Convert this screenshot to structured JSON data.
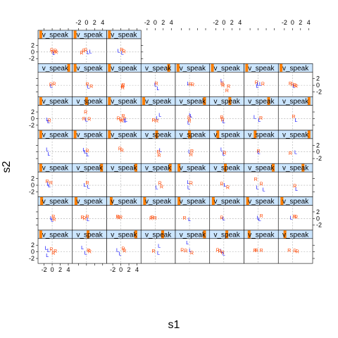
{
  "chart_data": {
    "type": "scatter",
    "layout": "trellis",
    "columns": 8,
    "panel_count": 51,
    "xlabel": "s1",
    "ylabel": "s2",
    "xlim": [
      -3.5,
      5
    ],
    "ylim": [
      -3.5,
      4
    ],
    "x_ticks": [
      "-2",
      "0",
      "2",
      "4"
    ],
    "y_ticks": [
      "2",
      "0",
      "-2"
    ],
    "x_tick_values": [
      -2,
      0,
      2,
      4
    ],
    "y_tick_values": [
      2,
      0,
      -2
    ],
    "strip_label": "v_speak",
    "strip_color": "#cce6ff",
    "strip_marker_color": "#ff7f00",
    "reference_lines": "dashed lines at s1 = 0 and s2 = 0",
    "series": [
      {
        "symbol": "L",
        "color": "#0000ff"
      },
      {
        "symbol": "R",
        "color": "#ff4500"
      }
    ],
    "panels": [
      {
        "m": 0.02,
        "pts": [
          [
            "L",
            -1.5,
            1.2
          ],
          [
            "L",
            -1.2,
            -1.0
          ],
          [
            "L",
            -0.9,
            0.4
          ],
          [
            "R",
            -0.2,
            0.8
          ],
          [
            "R",
            0.3,
            -0.4
          ],
          [
            "R",
            0.8,
            0.2
          ]
        ]
      },
      {
        "m": 0.45,
        "pts": [
          [
            "L",
            -1.0,
            1.3
          ],
          [
            "L",
            -0.2,
            -0.3
          ],
          [
            "R",
            0.5,
            0.5
          ],
          [
            "R",
            0.8,
            0.1
          ]
        ]
      },
      {
        "m": 0.9,
        "pts": [
          [
            "L",
            -0.8,
            0.6
          ],
          [
            "L",
            -0.2,
            -0.5
          ],
          [
            "R",
            0.6,
            1.0
          ],
          [
            "R",
            0.9,
            0.3
          ]
        ]
      },
      {
        "m": 0.65,
        "pts": [
          [
            "L",
            1.0,
            1.8
          ],
          [
            "L",
            0.8,
            -0.3
          ],
          [
            "R",
            -0.4,
            0.2
          ]
        ]
      },
      {
        "m": 0.9,
        "pts": [
          [
            "L",
            -0.5,
            2.8
          ],
          [
            "R",
            -1.8,
            0.6
          ],
          [
            "R",
            -0.9,
            0.3
          ],
          [
            "L",
            0.2,
            0.5
          ],
          [
            "R",
            0.6,
            -0.3
          ]
        ]
      },
      {
        "m": 0.5,
        "pts": [
          [
            "L",
            -0.6,
            0.3
          ],
          [
            "R",
            -1.5,
            0.6
          ],
          [
            "R",
            -1.0,
            0.2
          ],
          [
            "R",
            -0.3,
            -0.2
          ],
          [
            "L",
            0.0,
            -0.5
          ]
        ]
      },
      {
        "m": 0.1,
        "pts": [
          [
            "R",
            -0.8,
            0.5
          ],
          [
            "R",
            -0.4,
            0.4
          ],
          [
            "R",
            0.8,
            0.4
          ]
        ]
      },
      {
        "m": 0.15,
        "pts": [
          [
            "R",
            -0.8,
            0.5
          ],
          [
            "R",
            0.6,
            0.3
          ],
          [
            "R",
            1.2,
            0.1
          ]
        ]
      },
      {
        "m": 0.05,
        "pts": [
          [
            "L",
            -0.2,
            0.2
          ],
          [
            "R",
            0.3,
            0.6
          ],
          [
            "R",
            0.5,
            -0.2
          ],
          [
            "L",
            0.0,
            -0.4
          ]
        ]
      },
      {
        "m": 0.05,
        "pts": [
          [
            "R",
            -1.0,
            0.4
          ],
          [
            "R",
            -0.5,
            0.1
          ],
          [
            "L",
            0.4,
            -0.3
          ],
          [
            "R",
            0.2,
            0.6
          ]
        ]
      },
      {
        "m": 0.08,
        "pts": [
          [
            "R",
            -0.8,
            0.6
          ],
          [
            "R",
            -0.5,
            0.3
          ],
          [
            "R",
            0.0,
            0.4
          ]
        ]
      },
      {
        "m": 0.05,
        "pts": [
          [
            "R",
            -1.0,
            0.1
          ],
          [
            "R",
            -0.7,
            0.4
          ],
          [
            "R",
            0.0,
            0.2
          ]
        ]
      },
      {
        "m": 0.05,
        "pts": [
          [
            "R",
            -1.2,
            0.2
          ],
          [
            "L",
            0.0,
            -0.3
          ]
        ]
      },
      {
        "m": 0.05,
        "pts": [
          [
            "R",
            -0.5,
            0.3
          ],
          [
            "L",
            0.0,
            0.0
          ]
        ]
      },
      {
        "m": 0.05,
        "pts": [
          [
            "L",
            0.0,
            0.3
          ],
          [
            "L",
            0.4,
            -0.2
          ],
          [
            "R",
            0.8,
            0.8
          ]
        ]
      },
      {
        "m": 0.05,
        "pts": [
          [
            "L",
            -0.3,
            0.3
          ],
          [
            "R",
            0.5,
            0.6
          ],
          [
            "R",
            0.9,
            0.5
          ]
        ]
      },
      {
        "m": 0.02,
        "pts": [
          [
            "R",
            -1.2,
            1.2
          ],
          [
            "L",
            -1.0,
            0.4
          ],
          [
            "L",
            -0.7,
            -0.1
          ],
          [
            "R",
            -0.3,
            0.7
          ]
        ]
      },
      {
        "m": 0.9,
        "pts": [
          [
            "L",
            -0.4,
            0.1
          ],
          [
            "R",
            0.2,
            0.8
          ],
          [
            "L",
            0.5,
            -0.4
          ]
        ]
      },
      {
        "m": 0.9,
        "pts": []
      },
      {
        "m": 0.9,
        "pts": [
          [
            "L",
            0.4,
            -0.6
          ],
          [
            "R",
            1.2,
            0.6
          ],
          [
            "R",
            1.6,
            -0.4
          ]
        ]
      },
      {
        "m": 0.05,
        "pts": [
          [
            "L",
            -0.3,
            1.0
          ],
          [
            "R",
            0.4,
            0.6
          ],
          [
            "L",
            -0.2,
            -0.6
          ]
        ]
      },
      {
        "m": 0.45,
        "pts": [
          [
            "R",
            -0.5,
            0.4
          ],
          [
            "L",
            0.3,
            0.1
          ],
          [
            "R",
            1.0,
            -0.6
          ]
        ]
      },
      {
        "m": 0.9,
        "pts": [
          [
            "R",
            -0.6,
            1.8
          ],
          [
            "L",
            -0.2,
            -0.6
          ],
          [
            "R",
            0.8,
            0.4
          ],
          [
            "L",
            1.4,
            -1.3
          ]
        ]
      },
      {
        "m": 0.75,
        "pts": [
          [
            "R",
            0.6,
            -0.2
          ],
          [
            "L",
            1.0,
            -1.2
          ]
        ]
      },
      {
        "m": 0.02,
        "pts": [
          [
            "L",
            -1.2,
            0.8
          ],
          [
            "L",
            -0.8,
            -0.6
          ]
        ]
      },
      {
        "m": 0.02,
        "pts": [
          [
            "L",
            -0.6,
            0.7
          ],
          [
            "L",
            -0.3,
            0.1
          ],
          [
            "R",
            0.2,
            0.4
          ],
          [
            "L",
            0.3,
            -0.8
          ]
        ]
      },
      {
        "m": 0.02,
        "pts": [
          [
            "R",
            -0.2,
            1.0
          ],
          [
            "R",
            0.3,
            0.5
          ]
        ]
      },
      {
        "m": 0.45,
        "pts": [
          [
            "L",
            1.3,
            0.6
          ],
          [
            "R",
            0.8,
            0.0
          ],
          [
            "R",
            1.0,
            -1.0
          ]
        ]
      },
      {
        "m": 0.4,
        "pts": [
          [
            "L",
            0.0,
            0.2
          ],
          [
            "R",
            0.6,
            0.3
          ],
          [
            "R",
            0.4,
            -0.8
          ]
        ]
      },
      {
        "m": 0.2,
        "pts": [
          [
            "L",
            -0.5,
            0.8
          ],
          [
            "R",
            0.2,
            -0.3
          ],
          [
            "L",
            0.0,
            -0.6
          ]
        ]
      },
      {
        "m": 0.3,
        "pts": [
          [
            "R",
            0.1,
            0.3
          ],
          [
            "L",
            0.2,
            -0.2
          ]
        ]
      },
      {
        "m": 0.95,
        "pts": [
          [
            "R",
            -0.5,
            -0.4
          ],
          [
            "L",
            0.8,
            -0.1
          ]
        ]
      },
      {
        "m": 0.02,
        "pts": [
          [
            "L",
            -1.2,
            -0.2
          ],
          [
            "R",
            -0.7,
            -0.5
          ],
          [
            "L",
            -0.9,
            -0.9
          ]
        ]
      },
      {
        "m": 0.4,
        "pts": [
          [
            "R",
            -0.2,
            2.0
          ],
          [
            "R",
            -0.6,
            0.0
          ],
          [
            "L",
            0.0,
            -0.3
          ],
          [
            "R",
            0.7,
            -0.1
          ]
        ]
      },
      {
        "m": 0.02,
        "pts": [
          [
            "R",
            -0.6,
            0.1
          ],
          [
            "R",
            0.6,
            0.8
          ],
          [
            "R",
            0.9,
            0.0
          ],
          [
            "R",
            0.0,
            -0.3
          ],
          [
            "R",
            0.3,
            -0.6
          ],
          [
            "L",
            1.0,
            -0.5
          ],
          [
            "L",
            1.3,
            -0.4
          ]
        ]
      },
      {
        "m": 0.02,
        "pts": [
          [
            "L",
            1.2,
            1.2
          ],
          [
            "L",
            0.6,
            0.2
          ],
          [
            "R",
            -0.4,
            -0.4
          ],
          [
            "R",
            0.4,
            -0.7
          ]
        ]
      },
      {
        "m": 0.9,
        "pts": [
          [
            "L",
            0.2,
            1.2
          ],
          [
            "L",
            0.4,
            0.8
          ],
          [
            "R",
            -0.1,
            0.3
          ],
          [
            "R",
            0.0,
            -0.7
          ],
          [
            "L",
            -0.2,
            -1.2
          ]
        ]
      },
      {
        "m": 0.6,
        "pts": [
          [
            "R",
            -0.5,
            0.4
          ],
          [
            "R",
            -0.3,
            -0.3
          ],
          [
            "L",
            0.0,
            -0.9
          ]
        ]
      },
      {
        "m": 0.75,
        "pts": [
          [
            "L",
            -0.8,
            0.5
          ],
          [
            "L",
            0.3,
            -0.4
          ],
          [
            "R",
            0.7,
            0.2
          ]
        ]
      },
      {
        "m": 0.95,
        "pts": [
          [
            "R",
            0.3,
            0.6
          ],
          [
            "L",
            0.9,
            -0.4
          ]
        ]
      },
      {
        "m": 0.95,
        "pts": [
          [
            "R",
            -0.3,
            0.2
          ],
          [
            "L",
            -0.2,
            -0.2
          ],
          [
            "R",
            0.5,
            0.4
          ]
        ]
      },
      {
        "m": 0.02,
        "pts": [
          [
            "R",
            0.2,
            0.3
          ],
          [
            "L",
            0.5,
            -0.4
          ],
          [
            "R",
            1.2,
            -0.3
          ]
        ]
      },
      {
        "m": 0.02,
        "pts": [
          [
            "R",
            0.4,
            -0.3
          ],
          [
            "R",
            0.6,
            0.1
          ],
          [
            "R",
            0.5,
            -0.7
          ]
        ]
      },
      {
        "m": 0.85,
        "pts": [
          [
            "R",
            0.3,
            0.6
          ],
          [
            "L",
            0.1,
            0.2
          ],
          [
            "L",
            0.7,
            -0.9
          ]
        ]
      },
      {
        "m": 0.02,
        "pts": [
          [
            "L",
            -0.3,
            0.6
          ],
          [
            "R",
            0.2,
            0.3
          ],
          [
            "R",
            0.8,
            0.2
          ]
        ]
      },
      {
        "m": 0.02,
        "pts": [
          [
            "L",
            -0.5,
            1.4
          ],
          [
            "R",
            -0.4,
            0.6
          ],
          [
            "R",
            -0.2,
            0.0
          ],
          [
            "R",
            0.8,
            -1.6
          ],
          [
            "R",
            1.2,
            -0.3
          ]
        ]
      },
      {
        "m": 0.02,
        "pts": [
          [
            "R",
            -0.4,
            0.9
          ],
          [
            "L",
            0.0,
            0.4
          ],
          [
            "L",
            0.6,
            0.4
          ],
          [
            "R",
            1.2,
            0.4
          ],
          [
            "L",
            -0.2,
            -0.2
          ]
        ]
      },
      {
        "m": 0.02,
        "pts": [
          [
            "R",
            -0.5,
            0.6
          ],
          [
            "R",
            0.0,
            0.2
          ],
          [
            "L",
            0.4,
            -0.2
          ],
          [
            "R",
            0.6,
            0.0
          ],
          [
            "R",
            0.9,
            -0.2
          ]
        ]
      },
      {
        "m": 0.02,
        "pts": [
          [
            "R",
            -0.1,
            0.6
          ],
          [
            "R",
            0.2,
            0.1
          ],
          [
            "L",
            0.4,
            -0.4
          ],
          [
            "R",
            0.8,
            0.4
          ],
          [
            "R",
            1.0,
            0.0
          ]
        ]
      },
      {
        "m": 0.02,
        "pts": [
          [
            "R",
            -1.2,
            -0.3
          ],
          [
            "R",
            -0.7,
            0.4
          ],
          [
            "R",
            -0.2,
            0.6
          ],
          [
            "L",
            0.4,
            -0.1
          ],
          [
            "L",
            1.0,
            0.2
          ]
        ]
      },
      {
        "m": 0.02,
        "pts": [
          [
            "L",
            -0.5,
            0.4
          ],
          [
            "R",
            0.2,
            0.7
          ],
          [
            "L",
            0.4,
            -0.2
          ],
          [
            "R",
            0.8,
            0.2
          ]
        ]
      }
    ]
  }
}
